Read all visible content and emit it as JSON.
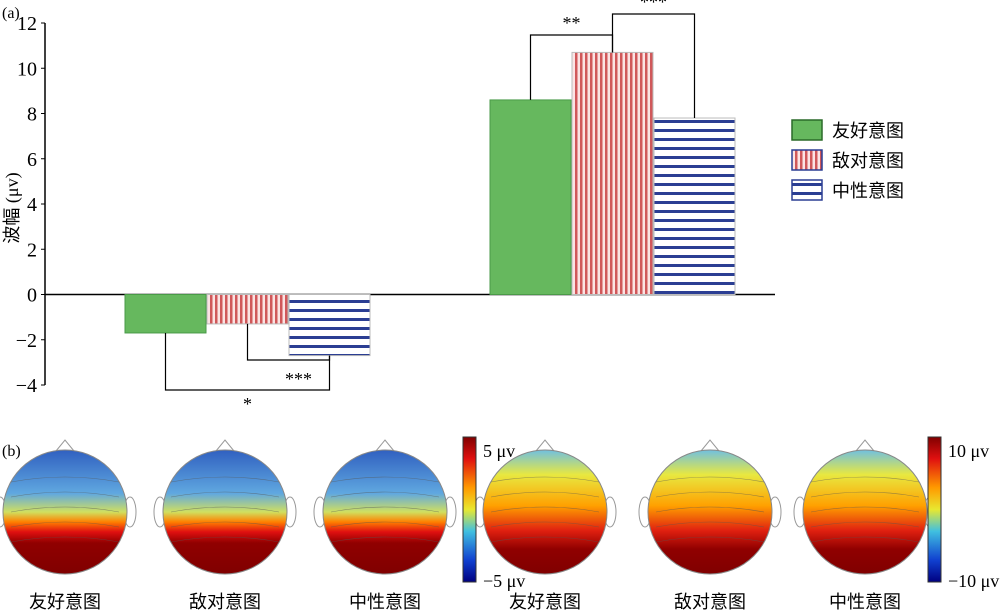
{
  "panel_a_label": "(a)",
  "panel_b_label": "(b)",
  "chart_data": [
    {
      "type": "bar",
      "ylabel": "波幅 (μv)",
      "ylim": [
        -4,
        12
      ],
      "yticks": [
        "12",
        "10",
        "8",
        "6",
        "4",
        "2",
        "0",
        "−2",
        "−4"
      ],
      "ytick_values": [
        12,
        10,
        8,
        6,
        4,
        2,
        0,
        -2,
        -4
      ],
      "categories": [
        "",
        ""
      ],
      "series": [
        {
          "name": "友好意图",
          "values": [
            -1.7,
            8.6
          ],
          "color": "#66b85e",
          "pattern": "solid"
        },
        {
          "name": "敌对意图",
          "values": [
            -1.3,
            10.7
          ],
          "color": "#d0585a",
          "pattern": "vertical-stripes"
        },
        {
          "name": "中性意图",
          "values": [
            -2.7,
            7.8
          ],
          "color": "#2b3e93",
          "pattern": "horizontal-stripes"
        }
      ],
      "legend_position": "right",
      "significance": [
        {
          "group": 0,
          "from": "敌对意图",
          "to": "中性意图",
          "label": "***"
        },
        {
          "group": 0,
          "from": "友好意图",
          "to": "中性意图",
          "label": "*"
        },
        {
          "group": 1,
          "from": "友好意图",
          "to": "敌对意图",
          "label": "**"
        },
        {
          "group": 1,
          "from": "敌对意图",
          "to": "中性意图",
          "label": "***"
        }
      ]
    }
  ],
  "topomaps": {
    "maps": [
      {
        "label": "友好意图"
      },
      {
        "label": "敌对意图"
      },
      {
        "label": "中性意图"
      },
      {
        "label": "友好意图"
      },
      {
        "label": "敌对意图"
      },
      {
        "label": "中性意图"
      }
    ],
    "colorbar_left": {
      "max": "5 μv",
      "min": "−5 μv"
    },
    "colorbar_right": {
      "max": "10 μv",
      "min": "−10 μv"
    }
  }
}
